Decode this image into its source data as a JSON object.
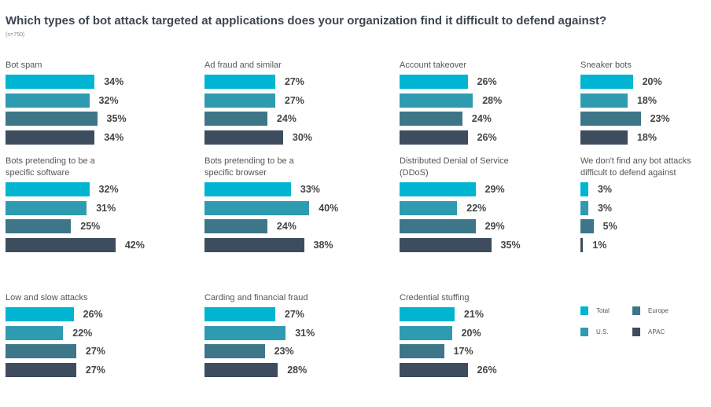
{
  "title": "Which types of bot attack targeted at applications does your organization find it difficult to define against?",
  "n": "(n=750)",
  "chart_data": {
    "type": "bar",
    "title": "Which types of bot attack targeted at applications does your organization find it difficult to defend against?",
    "subtitle": "(n=750)",
    "series_names": [
      "Total",
      "U.S.",
      "Europe",
      "APAC"
    ],
    "colors": [
      "#00b5d1",
      "#2f9bb1",
      "#3e7689",
      "#3d4d5d"
    ],
    "unit": "%",
    "panels": [
      {
        "label": "Bot spam",
        "values": [
          34,
          32,
          35,
          34
        ]
      },
      {
        "label": "Ad fraud and similar",
        "values": [
          27,
          27,
          24,
          30
        ]
      },
      {
        "label": "Account takeover",
        "values": [
          26,
          28,
          24,
          26
        ]
      },
      {
        "label": "Sneaker bots",
        "values": [
          20,
          18,
          23,
          18
        ]
      },
      {
        "label": "Bots pretending to be a specific software",
        "values": [
          32,
          31,
          25,
          42
        ]
      },
      {
        "label": "Bots pretending to be a specific browser",
        "values": [
          33,
          40,
          24,
          38
        ]
      },
      {
        "label": "Distributed Denial of Service (DDoS)",
        "values": [
          29,
          22,
          29,
          35
        ]
      },
      {
        "label": "We don't find any bot attacks difficult to defend against",
        "values": [
          3,
          3,
          5,
          1
        ]
      },
      {
        "label": "Low and slow attacks",
        "values": [
          26,
          22,
          27,
          27
        ]
      },
      {
        "label": "Carding and financial fraud",
        "values": [
          27,
          31,
          23,
          28
        ]
      },
      {
        "label": "Credential stuffing",
        "values": [
          21,
          20,
          17,
          26
        ]
      }
    ],
    "legend": [
      "Total",
      "Europe",
      "U.S.",
      "APAC"
    ],
    "legend_placement": "bottom-right"
  }
}
